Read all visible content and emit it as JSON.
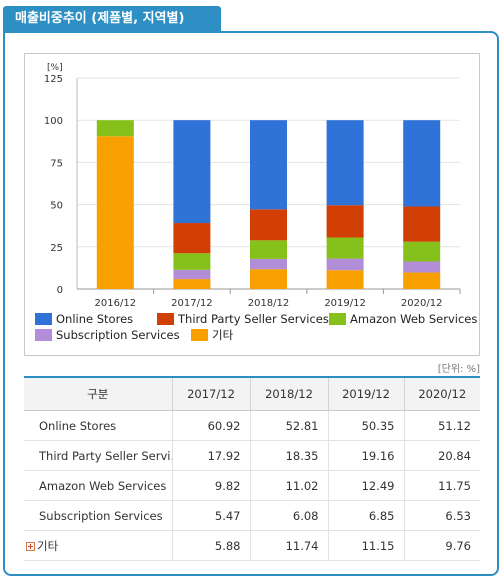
{
  "header": {
    "tab_title": "매출비중추이 (제품별, 지역별)"
  },
  "chart_data": {
    "type": "bar",
    "stacked": true,
    "categories": [
      "2016/12",
      "2017/12",
      "2018/12",
      "2019/12",
      "2020/12"
    ],
    "ylabel": "[%]",
    "ylim": [
      0,
      125
    ],
    "yticks": [
      0,
      25,
      50,
      75,
      100,
      125
    ],
    "grid": true,
    "legend_position": "bottom",
    "series": [
      {
        "name": "기타",
        "color": "#f7a000",
        "values": [
          90.5,
          5.88,
          11.74,
          11.15,
          9.76
        ]
      },
      {
        "name": "Subscription Services",
        "color": "#b28ed9",
        "values": [
          0,
          5.47,
          6.08,
          6.85,
          6.53
        ]
      },
      {
        "name": "Amazon Web Services",
        "color": "#86c11b",
        "values": [
          9.5,
          9.82,
          11.02,
          12.49,
          11.75
        ]
      },
      {
        "name": "Third Party Seller Services",
        "color": "#d23f05",
        "values": [
          0,
          17.92,
          18.35,
          19.16,
          20.84
        ]
      },
      {
        "name": "Online Stores",
        "color": "#2f72d8",
        "values": [
          0,
          60.92,
          52.81,
          50.35,
          51.12
        ]
      }
    ]
  },
  "legend": [
    {
      "label": "Online Stores",
      "color": "#2f72d8"
    },
    {
      "label": "Third Party Seller Services",
      "color": "#d23f05"
    },
    {
      "label": "Amazon Web Services",
      "color": "#86c11b"
    },
    {
      "label": "Subscription Services",
      "color": "#b28ed9"
    },
    {
      "label": "기타",
      "color": "#f7a000"
    }
  ],
  "table": {
    "unit": "[단위: %]",
    "headers": [
      "구분",
      "2017/12",
      "2018/12",
      "2019/12",
      "2020/12"
    ],
    "rows": [
      {
        "label": "Online Stores",
        "values": [
          "60.92",
          "52.81",
          "50.35",
          "51.12"
        ]
      },
      {
        "label": "Third Party Seller Servi...",
        "values": [
          "17.92",
          "18.35",
          "19.16",
          "20.84"
        ]
      },
      {
        "label": "Amazon Web Services",
        "values": [
          "9.82",
          "11.02",
          "12.49",
          "11.75"
        ]
      },
      {
        "label": "Subscription Services",
        "values": [
          "5.47",
          "6.08",
          "6.85",
          "6.53"
        ]
      },
      {
        "label": "기타",
        "values": [
          "5.88",
          "11.74",
          "11.15",
          "9.76"
        ],
        "expandable": true
      }
    ]
  }
}
